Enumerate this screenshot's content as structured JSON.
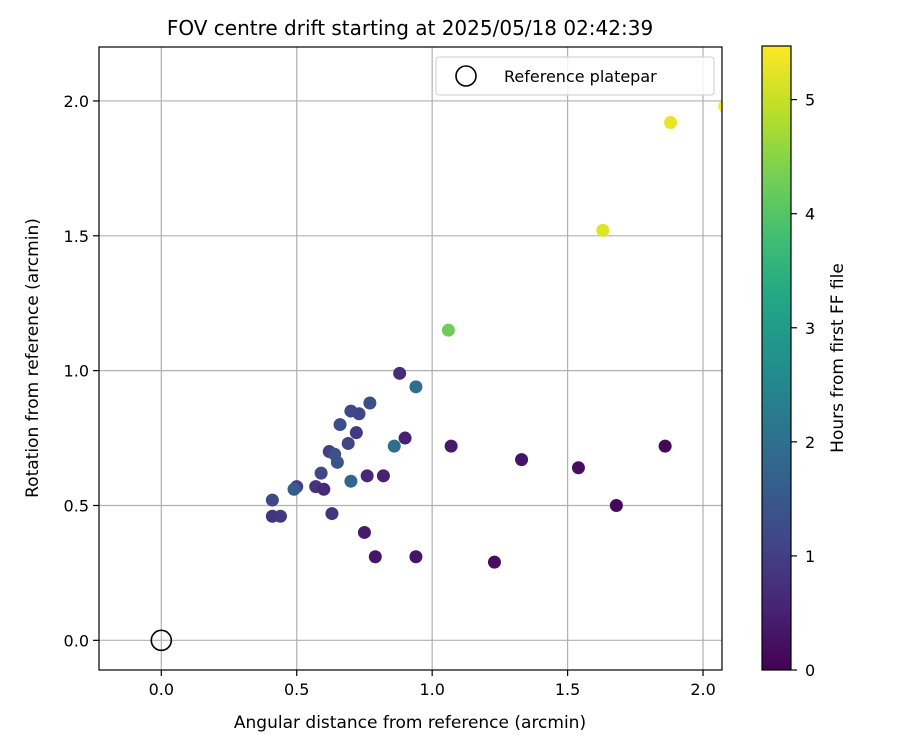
{
  "chart_data": {
    "type": "scatter",
    "title": "FOV centre drift starting at 2025/05/18 02:42:39",
    "xlabel": "Angular distance from reference (arcmin)",
    "ylabel": "Rotation from reference (arcmin)",
    "colorbar_label": "Hours from first FF file",
    "xlim": [
      -0.23,
      2.07
    ],
    "ylim": [
      -0.11,
      2.2
    ],
    "xticks": [
      "0.0",
      "0.5",
      "1.0",
      "1.5",
      "2.0"
    ],
    "yticks": [
      "0.0",
      "0.5",
      "1.0",
      "1.5",
      "2.0"
    ],
    "colorbar_ticks": [
      "0",
      "1",
      "2",
      "3",
      "4",
      "5"
    ],
    "colorbar_range": [
      0,
      5.47
    ],
    "colormap": "viridis",
    "grid": true,
    "legend_position": "top-right",
    "legend": [
      {
        "label": "Reference platepar",
        "marker": "open-circle",
        "color": "#000000"
      }
    ],
    "reference_point": {
      "x": 0.0,
      "y": 0.0
    },
    "points": [
      {
        "x": 2.08,
        "y": 1.98,
        "hours": 5.45
      },
      {
        "x": 1.88,
        "y": 1.92,
        "hours": 5.3
      },
      {
        "x": 1.63,
        "y": 1.52,
        "hours": 5.2
      },
      {
        "x": 1.06,
        "y": 1.15,
        "hours": 4.25
      },
      {
        "x": 0.94,
        "y": 0.94,
        "hours": 2.0
      },
      {
        "x": 0.88,
        "y": 0.99,
        "hours": 0.7
      },
      {
        "x": 0.77,
        "y": 0.88,
        "hours": 1.3
      },
      {
        "x": 0.7,
        "y": 0.85,
        "hours": 1.2
      },
      {
        "x": 0.73,
        "y": 0.84,
        "hours": 1.1
      },
      {
        "x": 0.66,
        "y": 0.8,
        "hours": 1.3
      },
      {
        "x": 0.72,
        "y": 0.77,
        "hours": 0.9
      },
      {
        "x": 0.69,
        "y": 0.73,
        "hours": 1.1
      },
      {
        "x": 0.86,
        "y": 0.72,
        "hours": 2.0
      },
      {
        "x": 0.9,
        "y": 0.75,
        "hours": 0.5
      },
      {
        "x": 1.07,
        "y": 0.72,
        "hours": 0.4
      },
      {
        "x": 0.62,
        "y": 0.7,
        "hours": 1.0
      },
      {
        "x": 0.64,
        "y": 0.69,
        "hours": 1.4
      },
      {
        "x": 0.65,
        "y": 0.66,
        "hours": 1.4
      },
      {
        "x": 0.59,
        "y": 0.62,
        "hours": 1.2
      },
      {
        "x": 0.76,
        "y": 0.61,
        "hours": 0.6
      },
      {
        "x": 0.82,
        "y": 0.61,
        "hours": 0.5
      },
      {
        "x": 0.7,
        "y": 0.59,
        "hours": 1.8
      },
      {
        "x": 0.57,
        "y": 0.57,
        "hours": 0.8
      },
      {
        "x": 0.5,
        "y": 0.57,
        "hours": 1.0
      },
      {
        "x": 0.49,
        "y": 0.56,
        "hours": 1.6
      },
      {
        "x": 0.6,
        "y": 0.56,
        "hours": 0.6
      },
      {
        "x": 0.41,
        "y": 0.52,
        "hours": 1.2
      },
      {
        "x": 0.63,
        "y": 0.47,
        "hours": 0.8
      },
      {
        "x": 0.41,
        "y": 0.46,
        "hours": 0.8
      },
      {
        "x": 0.44,
        "y": 0.46,
        "hours": 0.9
      },
      {
        "x": 0.75,
        "y": 0.4,
        "hours": 0.4
      },
      {
        "x": 0.79,
        "y": 0.31,
        "hours": 0.3
      },
      {
        "x": 0.94,
        "y": 0.31,
        "hours": 0.3
      },
      {
        "x": 1.23,
        "y": 0.29,
        "hours": 0.2
      },
      {
        "x": 1.33,
        "y": 0.67,
        "hours": 0.3
      },
      {
        "x": 1.54,
        "y": 0.64,
        "hours": 0.2
      },
      {
        "x": 1.68,
        "y": 0.5,
        "hours": 0.1
      },
      {
        "x": 1.86,
        "y": 0.72,
        "hours": 0.1
      }
    ]
  }
}
